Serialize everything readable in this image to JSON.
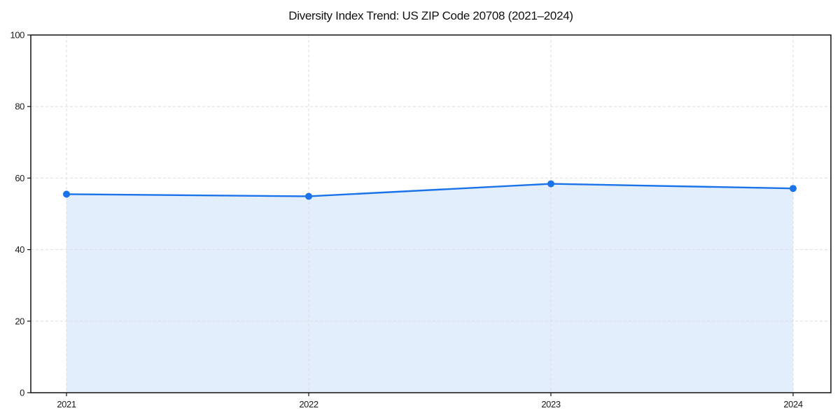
{
  "figure": {
    "background_color": "#ffffff"
  },
  "chart_data": {
    "type": "area",
    "title": "Diversity Index Trend: US ZIP Code 20708 (2021–2024)",
    "x": [
      "2021",
      "2022",
      "2023",
      "2024"
    ],
    "series": [
      {
        "name": "Diversity Index",
        "values": [
          55.5,
          54.9,
          58.4,
          57.1
        ],
        "line_color": "#1a73e8",
        "fill_color": "#1a73e8",
        "fill_opacity": 0.12,
        "marker": "circle"
      }
    ],
    "xlabel": "",
    "ylabel": "",
    "ylim": [
      0,
      100
    ],
    "yticks": [
      0,
      20,
      40,
      60,
      80,
      100
    ],
    "grid": {
      "show": true,
      "style": "dashed",
      "color": "#dedede",
      "axes": "both"
    },
    "legend": "none",
    "spines": {
      "box": true,
      "color": "#111111"
    },
    "tick_color": "#1a1a1a"
  }
}
